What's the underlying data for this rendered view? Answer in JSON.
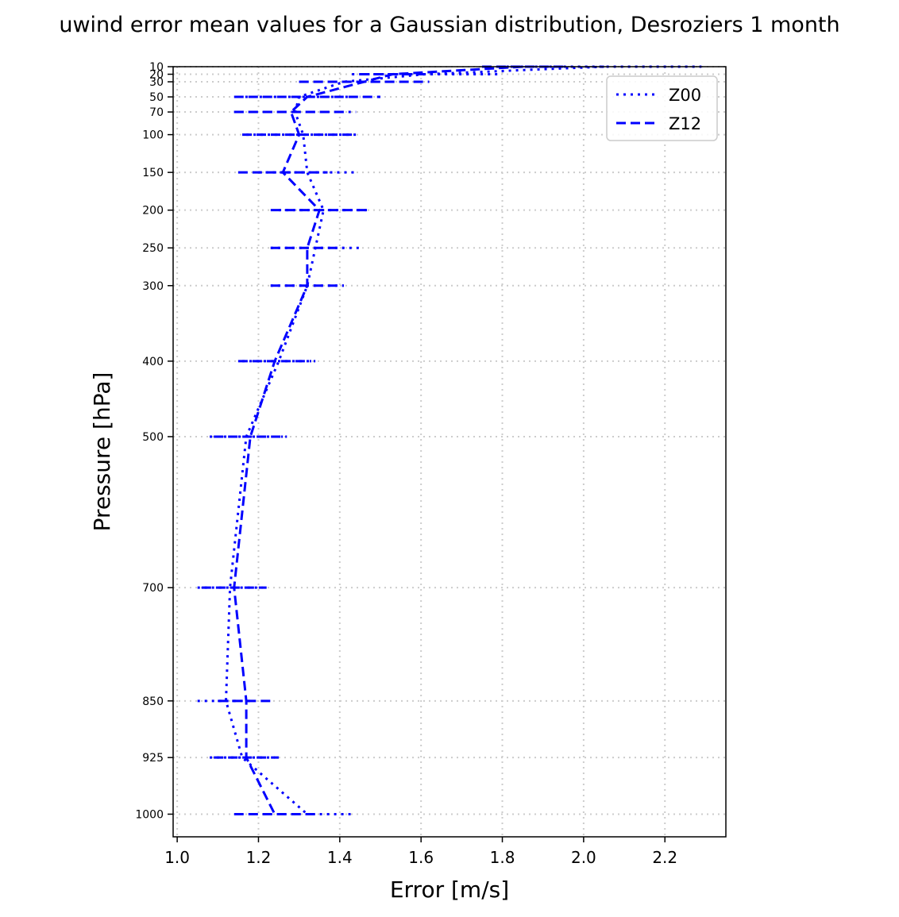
{
  "chart_data": {
    "type": "line",
    "title": "uwind error mean values for a Gaussian distribution, Desroziers 1 month",
    "xlabel": "Error [m/s]",
    "ylabel": "Pressure [hPa]",
    "xlim": [
      0.99,
      2.35
    ],
    "ylim": [
      1030,
      10
    ],
    "xticks": [
      1.0,
      1.2,
      1.4,
      1.6,
      1.8,
      2.0,
      2.2
    ],
    "xtick_labels": [
      "1.0",
      "1.2",
      "1.4",
      "1.6",
      "1.8",
      "2.0",
      "2.2"
    ],
    "yticks": [
      10,
      20,
      30,
      50,
      70,
      100,
      150,
      200,
      250,
      300,
      400,
      500,
      700,
      850,
      925,
      1000
    ],
    "ytick_labels": [
      "10",
      "20",
      "30",
      "50",
      "70",
      "100",
      "150",
      "200",
      "250",
      "300",
      "400",
      "500",
      "700",
      "850",
      "925",
      "1000"
    ],
    "grid": true,
    "legend_position": "top-right",
    "color": "#0000ff",
    "pressure_levels": [
      10,
      20,
      30,
      50,
      70,
      100,
      150,
      200,
      250,
      300,
      400,
      500,
      700,
      850,
      925,
      1000
    ],
    "series": [
      {
        "name": "Z00",
        "style": "dotted",
        "values": [
          2.05,
          1.61,
          1.41,
          1.3,
          1.29,
          1.31,
          1.32,
          1.36,
          1.34,
          1.32,
          1.25,
          1.17,
          1.13,
          1.12,
          1.16,
          1.32
        ],
        "errors": [
          0.24,
          0.18,
          0.11,
          0.15,
          0.15,
          0.14,
          0.12,
          0.11,
          0.11,
          0.09,
          0.09,
          0.09,
          0.08,
          0.07,
          0.08,
          0.11
        ]
      },
      {
        "name": "Z12",
        "style": "dashed",
        "values": [
          1.85,
          1.53,
          1.46,
          1.32,
          1.28,
          1.3,
          1.26,
          1.35,
          1.32,
          1.32,
          1.24,
          1.18,
          1.14,
          1.17,
          1.17,
          1.24
        ],
        "errors": [
          0.1,
          0.08,
          0.16,
          0.18,
          0.14,
          0.14,
          0.11,
          0.12,
          0.09,
          0.09,
          0.09,
          0.09,
          0.08,
          0.07,
          0.08,
          0.1
        ]
      }
    ]
  }
}
